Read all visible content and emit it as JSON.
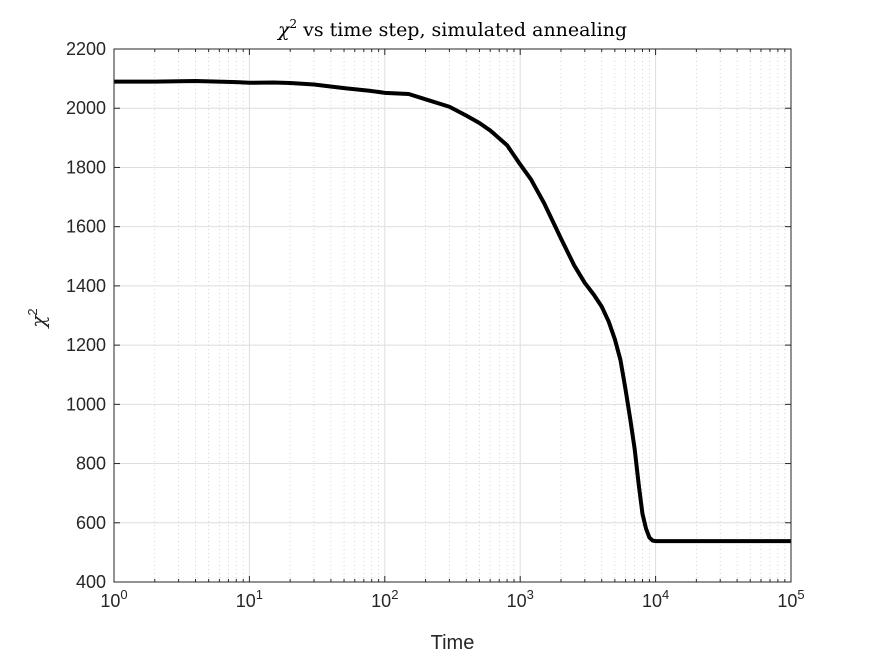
{
  "chart_data": {
    "type": "line",
    "title": {
      "symbol": "χ",
      "superscript": "2",
      "text": "vs time step, simulated annealing"
    },
    "xlabel": "Time",
    "ylabel": {
      "symbol": "χ",
      "superscript": "2"
    },
    "x_scale": "log",
    "xlim": [
      1,
      100000
    ],
    "ylim": [
      400,
      2200
    ],
    "x_ticks": [
      {
        "value": 1,
        "base": "10",
        "exp": "0"
      },
      {
        "value": 10,
        "base": "10",
        "exp": "1"
      },
      {
        "value": 100,
        "base": "10",
        "exp": "2"
      },
      {
        "value": 1000,
        "base": "10",
        "exp": "3"
      },
      {
        "value": 10000,
        "base": "10",
        "exp": "4"
      },
      {
        "value": 100000,
        "base": "10",
        "exp": "5"
      }
    ],
    "y_ticks": [
      "400",
      "600",
      "800",
      "1000",
      "1200",
      "1400",
      "1600",
      "1800",
      "2000",
      "2200"
    ],
    "grid": true,
    "minor_grid_x": true,
    "line_color": "#000000",
    "series": [
      {
        "x": [
          1,
          2,
          4,
          8,
          10,
          15,
          20,
          30,
          50,
          80,
          100,
          150,
          200,
          300,
          400,
          500,
          600,
          800,
          1000,
          1200,
          1500,
          2000,
          2500,
          3000,
          3500,
          4000,
          4500,
          5000,
          5500,
          6000,
          6500,
          7000,
          7500,
          8000,
          8500,
          9000,
          9500,
          10000,
          11000,
          15000,
          30000,
          100000
        ],
        "y": [
          2090,
          2090,
          2092,
          2088,
          2086,
          2087,
          2085,
          2080,
          2068,
          2058,
          2052,
          2048,
          2030,
          2005,
          1975,
          1950,
          1925,
          1875,
          1810,
          1760,
          1680,
          1560,
          1470,
          1410,
          1370,
          1330,
          1280,
          1220,
          1150,
          1050,
          950,
          850,
          730,
          630,
          580,
          550,
          540,
          538,
          538,
          538,
          538,
          538
        ]
      }
    ]
  }
}
